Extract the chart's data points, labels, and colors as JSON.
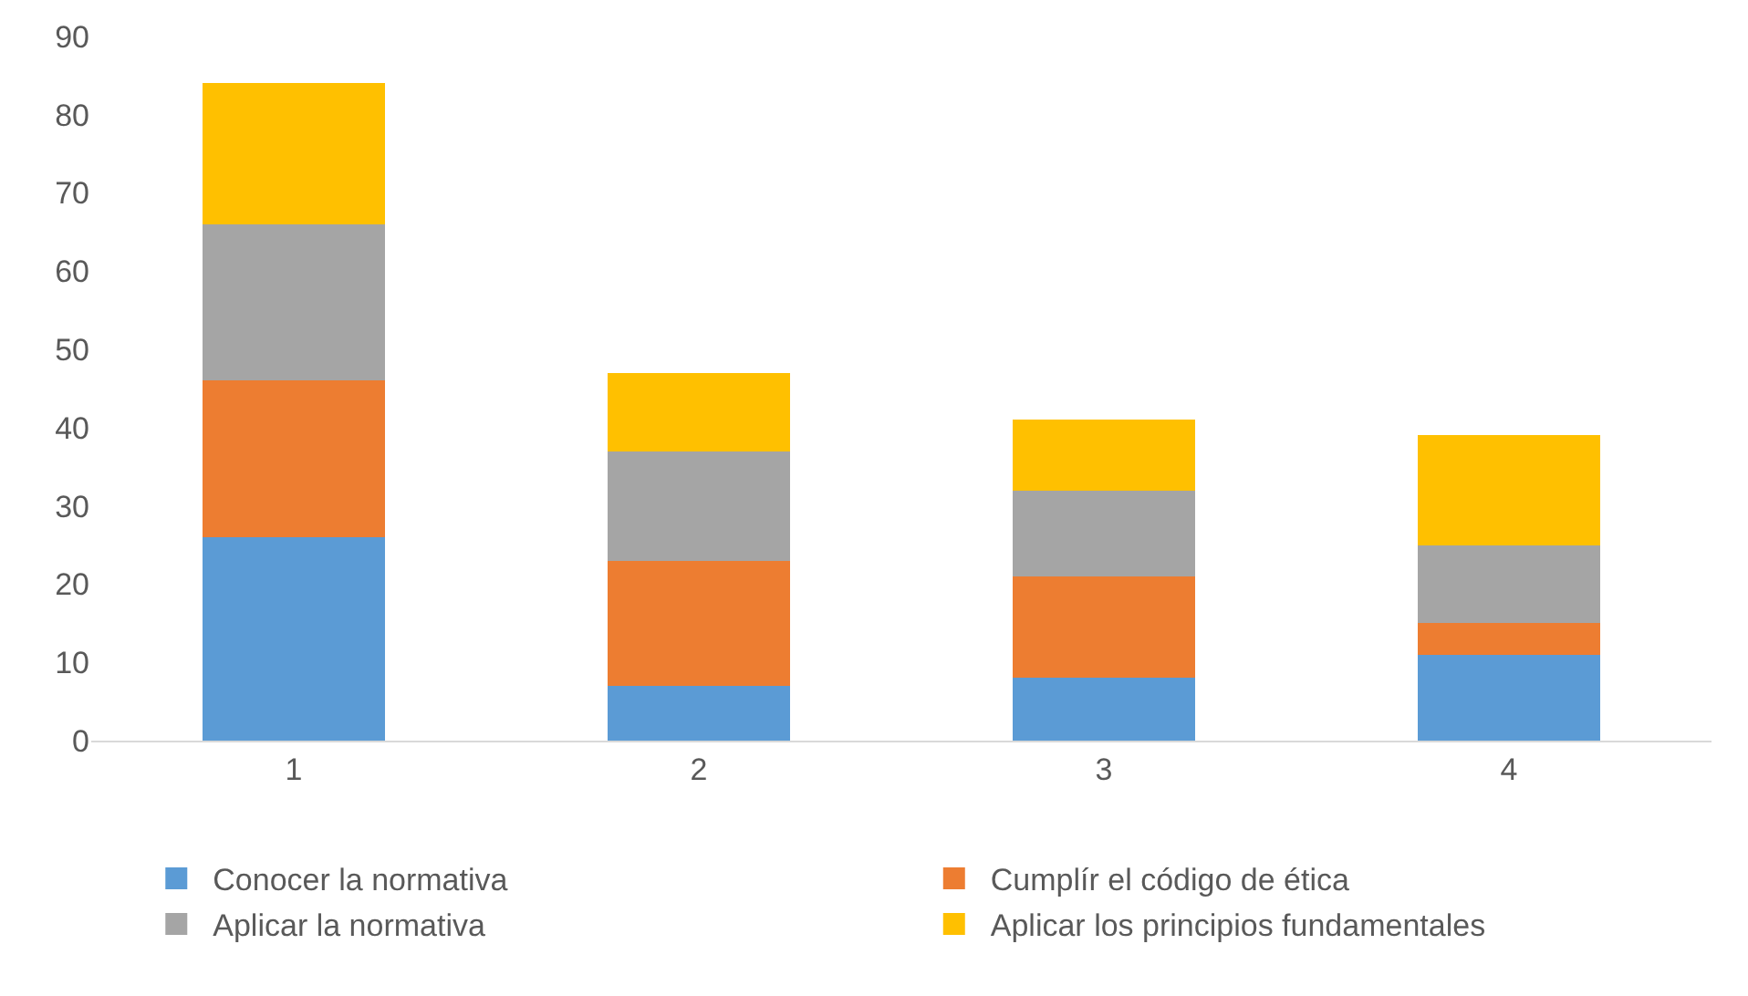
{
  "chart_data": {
    "type": "bar",
    "stacked": true,
    "categories": [
      "1",
      "2",
      "3",
      "4"
    ],
    "series": [
      {
        "name": "Conocer la normativa",
        "color": "#5b9bd5",
        "values": [
          26,
          7,
          8,
          11
        ]
      },
      {
        "name": "Cumplír el código de ética",
        "color": "#ed7d31",
        "values": [
          20,
          16,
          13,
          4
        ]
      },
      {
        "name": "Aplicar la normativa",
        "color": "#a5a5a5",
        "values": [
          20,
          14,
          11,
          10
        ]
      },
      {
        "name": "Aplicar los principios fundamentales",
        "color": "#ffc000",
        "values": [
          18,
          10,
          9,
          14
        ]
      }
    ],
    "ylim": [
      0,
      90
    ],
    "yticks": [
      0,
      10,
      20,
      30,
      40,
      50,
      60,
      70,
      80,
      90
    ],
    "grid": false,
    "legend": "bottom"
  }
}
